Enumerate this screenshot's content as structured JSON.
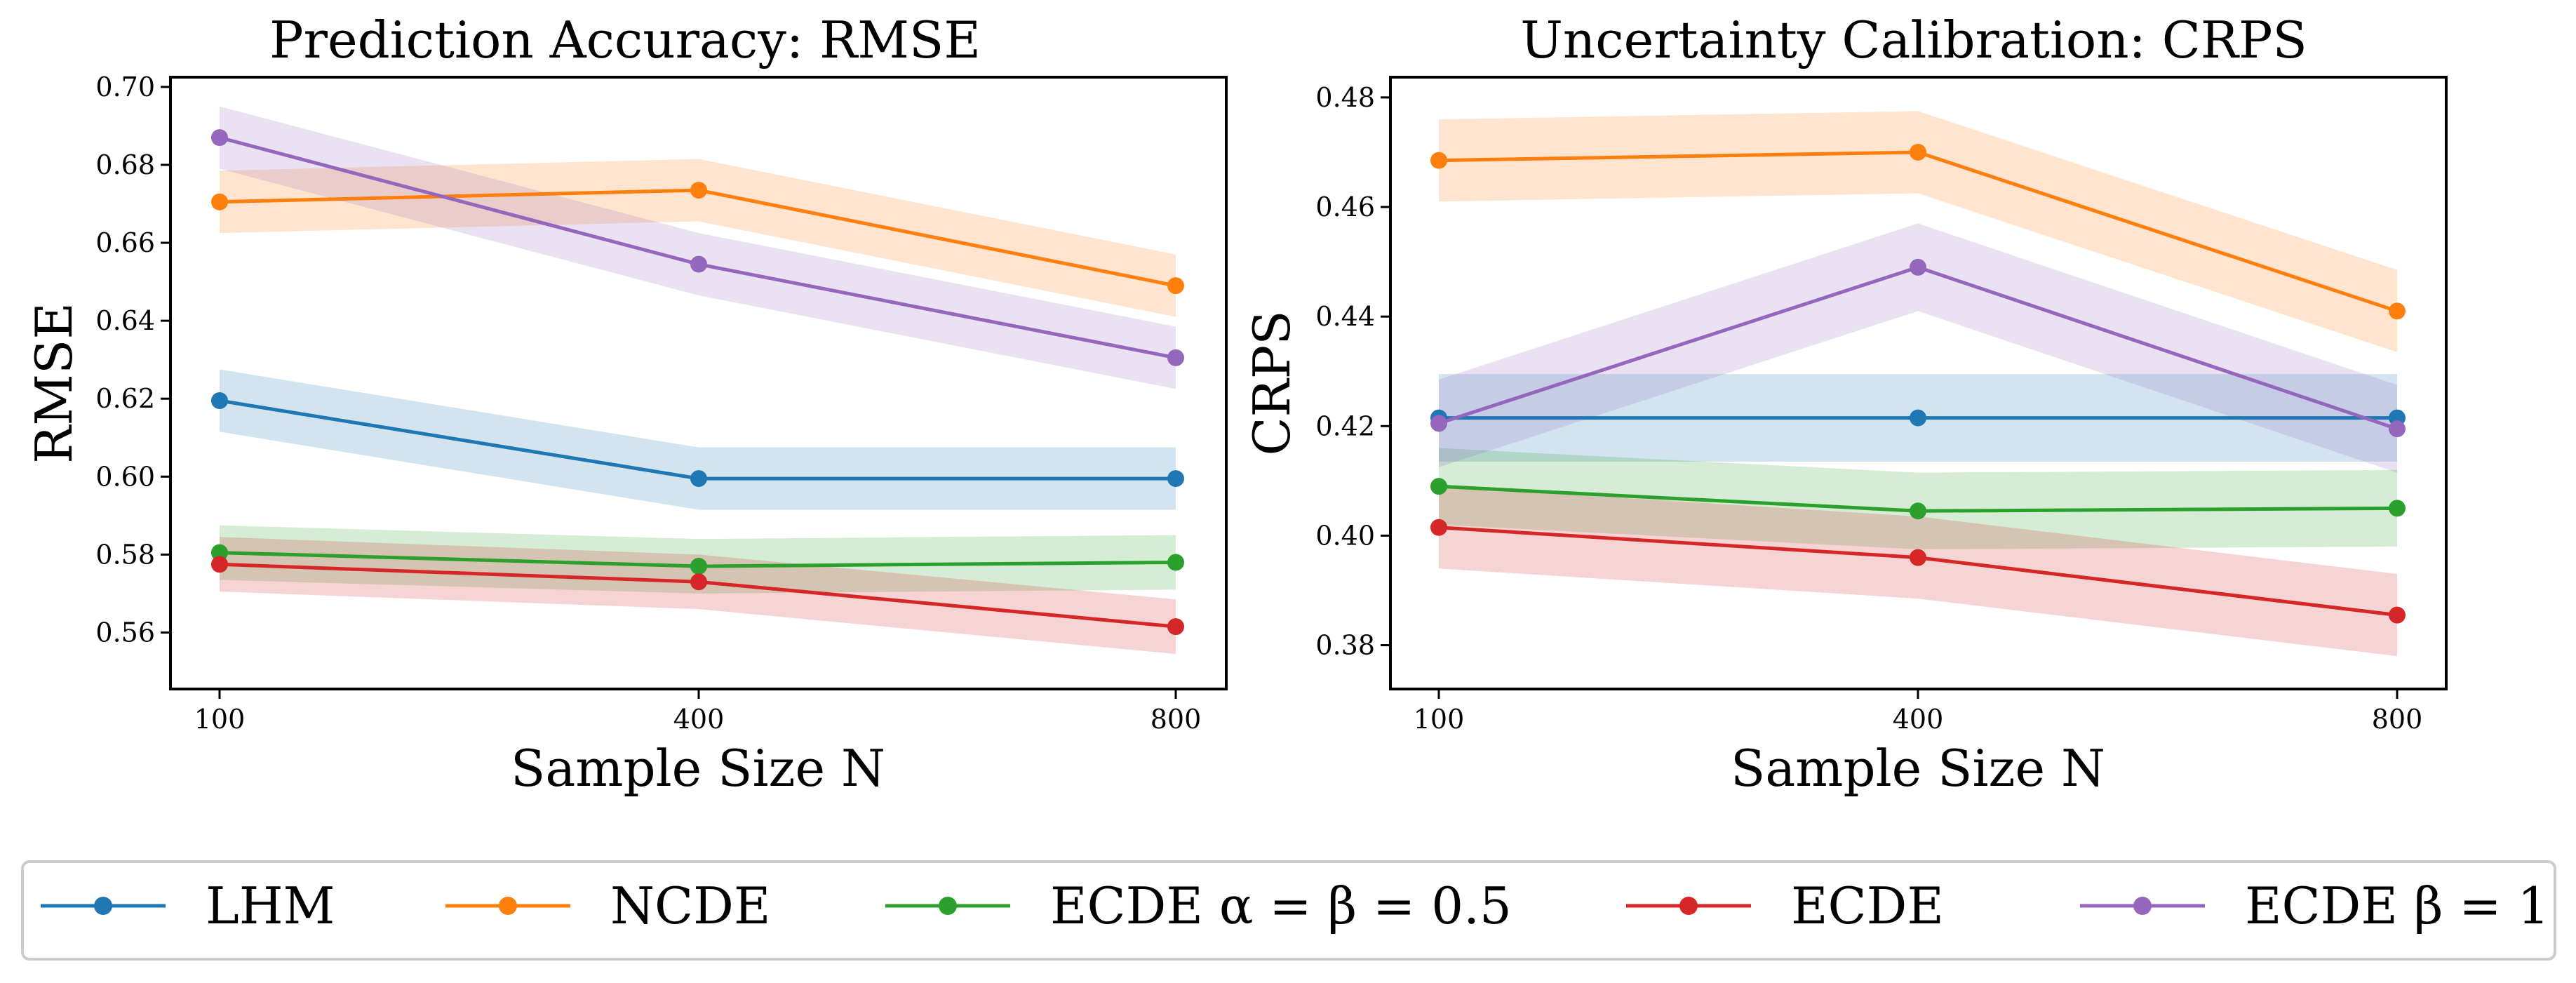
{
  "chart_data": [
    {
      "type": "line",
      "title": "Prediction Accuracy: RMSE",
      "xlabel": "Sample Size N",
      "ylabel": "RMSE",
      "x": [
        100,
        400,
        800
      ],
      "x_tick_labels": [
        "100",
        "400",
        "800"
      ],
      "y_ticks": [
        0.56,
        0.58,
        0.6,
        0.62,
        0.64,
        0.66,
        0.68,
        0.7
      ],
      "y_tick_labels": [
        "0.56",
        "0.58",
        "0.60",
        "0.62",
        "0.64",
        "0.66",
        "0.68",
        "0.70"
      ],
      "ylim": [
        0.5455,
        0.7025
      ],
      "grid": false,
      "series": [
        {
          "name": "LHM",
          "color": "#1f77b4",
          "values": [
            0.6195,
            0.5995,
            0.5995
          ],
          "band": 0.008
        },
        {
          "name": "NCDE",
          "color": "#ff7f0e",
          "values": [
            0.6705,
            0.6735,
            0.649
          ],
          "band": 0.008
        },
        {
          "name": "ECDE α = β = 0.5",
          "color": "#2ca02c",
          "values": [
            0.5805,
            0.577,
            0.578
          ],
          "band": 0.007
        },
        {
          "name": "ECDE",
          "color": "#d62728",
          "values": [
            0.5775,
            0.573,
            0.5615
          ],
          "band": 0.007
        },
        {
          "name": "ECDE β = 1",
          "color": "#9467bd",
          "values": [
            0.687,
            0.6545,
            0.6305
          ],
          "band": 0.008
        }
      ]
    },
    {
      "type": "line",
      "title": "Uncertainty Calibration: CRPS",
      "xlabel": "Sample Size N",
      "ylabel": "CRPS",
      "x": [
        100,
        400,
        800
      ],
      "x_tick_labels": [
        "100",
        "400",
        "800"
      ],
      "y_ticks": [
        0.38,
        0.4,
        0.42,
        0.44,
        0.46,
        0.48
      ],
      "y_tick_labels": [
        "0.38",
        "0.40",
        "0.42",
        "0.44",
        "0.46",
        "0.48"
      ],
      "ylim": [
        0.372,
        0.4837
      ],
      "grid": false,
      "series": [
        {
          "name": "LHM",
          "color": "#1f77b4",
          "values": [
            0.4215,
            0.4215,
            0.4215
          ],
          "band": 0.008
        },
        {
          "name": "NCDE",
          "color": "#ff7f0e",
          "values": [
            0.4685,
            0.47,
            0.441
          ],
          "band": 0.0075
        },
        {
          "name": "ECDE α = β = 0.5",
          "color": "#2ca02c",
          "values": [
            0.409,
            0.4045,
            0.405
          ],
          "band": 0.007
        },
        {
          "name": "ECDE",
          "color": "#d62728",
          "values": [
            0.4015,
            0.396,
            0.3855
          ],
          "band": 0.0075
        },
        {
          "name": "ECDE β = 1",
          "color": "#9467bd",
          "values": [
            0.4205,
            0.449,
            0.4195
          ],
          "band": 0.008
        }
      ]
    }
  ],
  "legend": {
    "position": "bottom",
    "entries": [
      {
        "label": "LHM",
        "color": "#1f77b4"
      },
      {
        "label": "NCDE",
        "color": "#ff7f0e"
      },
      {
        "label": "ECDE α = β = 0.5",
        "color": "#2ca02c"
      },
      {
        "label": "ECDE",
        "color": "#d62728"
      },
      {
        "label": "ECDE β = 1",
        "color": "#9467bd"
      }
    ]
  }
}
